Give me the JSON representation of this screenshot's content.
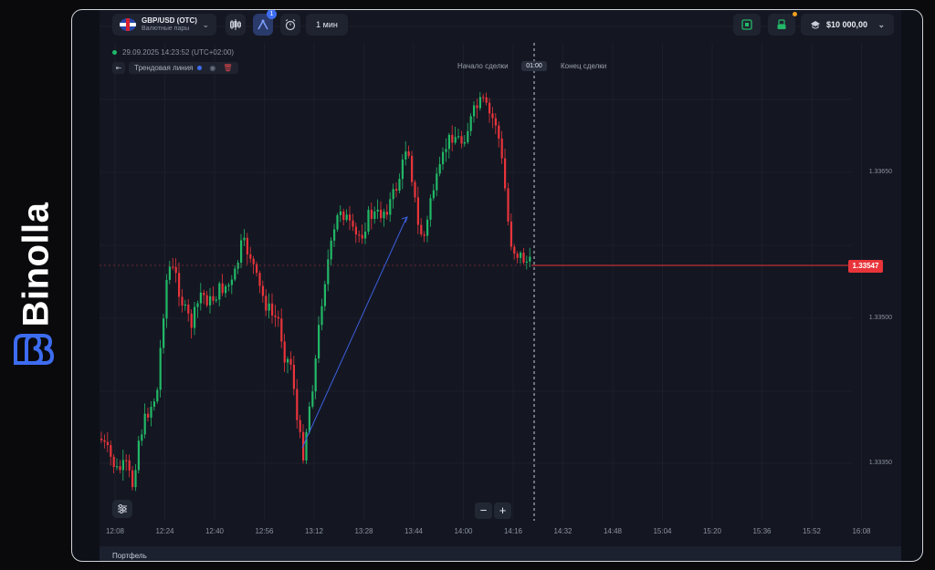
{
  "brand": {
    "name": "Binolla"
  },
  "toolbar": {
    "pair": "GBP/USD (OTC)",
    "pair_type": "Валютные пары",
    "indicator_badge": "1",
    "timeframe": "1 мин",
    "balance": "$10 000,00"
  },
  "info": {
    "datetime": "29.09.2025 14:23:52 (UTC+02:00)",
    "tool_name": "Трендовая линия"
  },
  "deal": {
    "start_label": "Начало сделки",
    "end_label": "Конец сделки",
    "timer": "01:00"
  },
  "price_axis": {
    "labels": [
      "1.33650",
      "1.33500",
      "1.33350"
    ],
    "current": "1.33547"
  },
  "time_axis": [
    "12:08",
    "12:24",
    "12:40",
    "12:56",
    "13:12",
    "13:28",
    "13:44",
    "14:00",
    "14:16",
    "14:32",
    "14:48",
    "15:04",
    "15:20",
    "15:36",
    "15:52",
    "16:08"
  ],
  "footer": {
    "portfolio_label": "Портфель"
  },
  "colors": {
    "up": "#22b867",
    "down": "#e8343a",
    "trend_line": "#3d5fe0",
    "accent": "#3d6cf0",
    "background": "#141722"
  },
  "icons": [
    "candles-icon",
    "indicator-icon",
    "alarm-icon",
    "deal-icon",
    "account-icon",
    "wallet-icon",
    "chevron-down-icon",
    "eye-icon",
    "trash-icon",
    "settings-icon"
  ]
}
